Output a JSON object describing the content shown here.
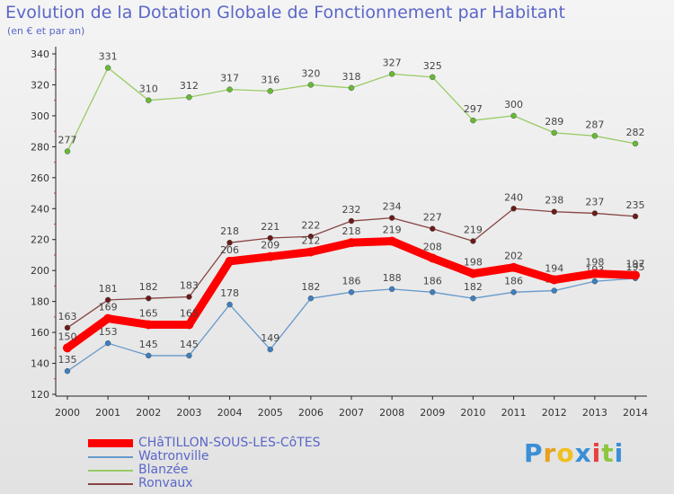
{
  "chart_data": {
    "type": "line",
    "title": "Evolution de la Dotation Globale de Fonctionnement par Habitant",
    "subtitle": "(en € et par an)",
    "xlabel": "",
    "ylabel": "",
    "ylim": [
      120,
      340
    ],
    "yticks": [
      120,
      140,
      160,
      180,
      200,
      220,
      240,
      260,
      280,
      300,
      320,
      340
    ],
    "x": [
      "2000",
      "2001",
      "2002",
      "2003",
      "2004",
      "2005",
      "2006",
      "2007",
      "2008",
      "2009",
      "2010",
      "2011",
      "2012",
      "2013",
      "2014"
    ],
    "grid": false,
    "legend": "bottom-left",
    "series": [
      {
        "name": "Blanzée",
        "color": "#99cc66",
        "marker": "#66bb33",
        "values": [
          277,
          331,
          310,
          312,
          317,
          316,
          320,
          318,
          327,
          325,
          297,
          300,
          289,
          287,
          282
        ]
      },
      {
        "name": "Ronvaux",
        "color": "#884444",
        "marker": "#6b1a1a",
        "values": [
          163,
          181,
          182,
          183,
          218,
          221,
          222,
          232,
          234,
          227,
          219,
          240,
          238,
          237,
          235
        ]
      },
      {
        "name": "Watronville",
        "color": "#6699cc",
        "marker": "#3d7fc0",
        "values": [
          135,
          153,
          145,
          145,
          178,
          149,
          182,
          186,
          188,
          186,
          182,
          186,
          187,
          193,
          195
        ]
      },
      {
        "name": "CHâTILLON-SOUS-LES-CôTES",
        "color": "#ff0000",
        "marker": "#ff0000",
        "values": [
          150,
          169,
          165,
          165,
          206,
          209,
          212,
          218,
          219,
          208,
          198,
          202,
          194,
          198,
          197
        ]
      }
    ]
  },
  "legend_items": [
    {
      "label": "CHâTILLON-SOUS-LES-CôTES",
      "color": "#ff0000"
    },
    {
      "label": "Watronville",
      "color": "#6699cc"
    },
    {
      "label": "Blanzée",
      "color": "#99cc66"
    },
    {
      "label": "Ronvaux",
      "color": "#884444"
    }
  ],
  "logo": {
    "letters": [
      "P",
      "r",
      "o",
      "x",
      "i",
      "t",
      "i"
    ],
    "colors": [
      "#3a8fd6",
      "#e8a020",
      "#f0c020",
      "#3a8fd6",
      "#e84040",
      "#8cc63f",
      "#3a8fd6"
    ]
  }
}
